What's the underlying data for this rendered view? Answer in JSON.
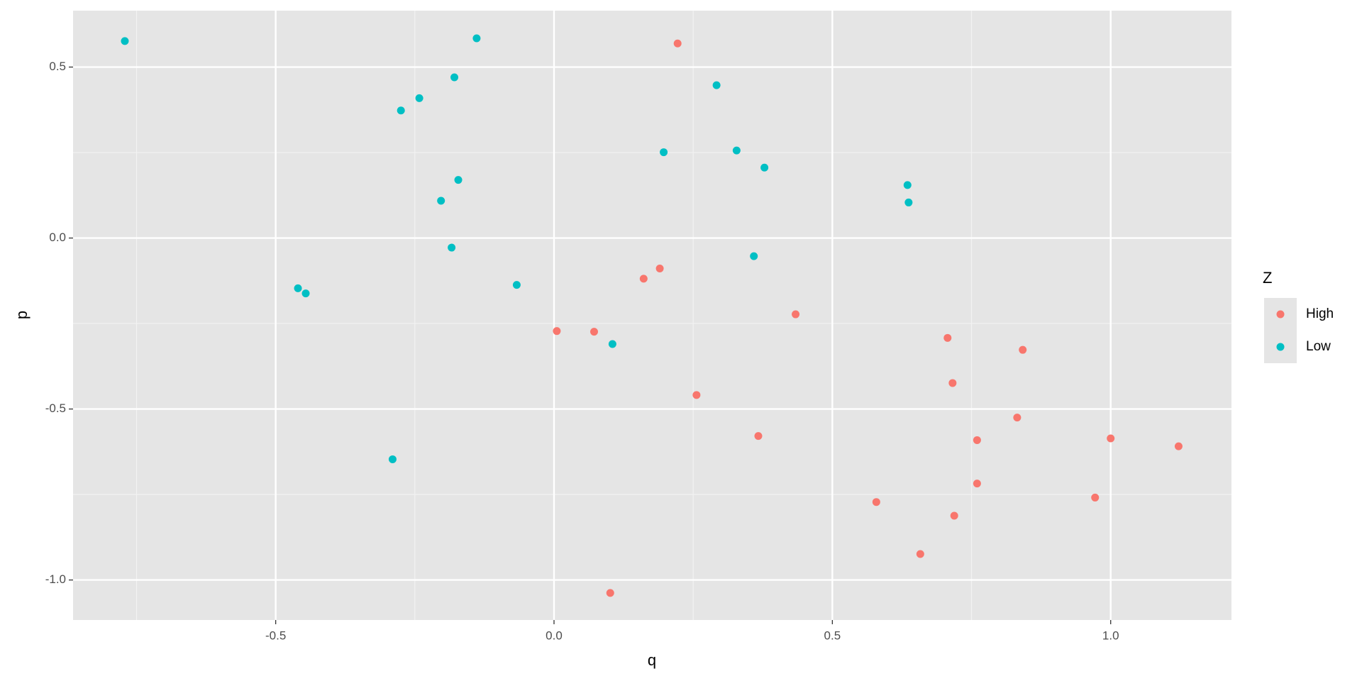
{
  "chart_data": {
    "type": "scatter",
    "x_label": "q",
    "y_label": "p",
    "legend_title": "Z",
    "xlim": [
      -0.864,
      1.217
    ],
    "ylim": [
      -1.117,
      0.665
    ],
    "xticks": [
      -0.5,
      {
        "value": 0,
        "label": "0.0"
      },
      0.5,
      {
        "value": 1,
        "label": "1.0"
      }
    ],
    "yticks": [
      0.5,
      {
        "value": 0,
        "label": "0.0"
      },
      -0.5,
      {
        "value": -1,
        "label": "-1.0"
      }
    ],
    "grid": true,
    "legend_position": "right",
    "series": [
      {
        "name": "High",
        "color": "#f8766d",
        "x": [
          0.222,
          0.19,
          0.161,
          0.005,
          0.072,
          0.434,
          0.256,
          0.367,
          0.101,
          0.579,
          0.658,
          0.707,
          0.716,
          0.842,
          0.76,
          0.76,
          0.719,
          0.832,
          1.0,
          0.972,
          1.122
        ],
        "y": [
          0.569,
          -0.089,
          -0.119,
          -0.272,
          -0.274,
          -0.223,
          -0.459,
          -0.579,
          -1.038,
          -0.772,
          -0.924,
          -0.292,
          -0.424,
          -0.327,
          -0.591,
          -0.718,
          -0.812,
          -0.525,
          -0.586,
          -0.759,
          -0.609
        ]
      },
      {
        "name": "Low",
        "color": "#00bfc4",
        "x": [
          -0.771,
          -0.139,
          -0.179,
          -0.242,
          -0.275,
          -0.172,
          -0.203,
          -0.184,
          -0.067,
          -0.46,
          -0.446,
          -0.29,
          0.105,
          0.292,
          0.197,
          0.328,
          0.378,
          0.359,
          0.635,
          0.637
        ],
        "y": [
          0.576,
          0.584,
          0.47,
          0.409,
          0.373,
          0.17,
          0.109,
          -0.028,
          -0.137,
          -0.147,
          -0.162,
          -0.647,
          -0.31,
          0.447,
          0.251,
          0.256,
          0.206,
          -0.053,
          0.155,
          0.104
        ]
      }
    ]
  }
}
